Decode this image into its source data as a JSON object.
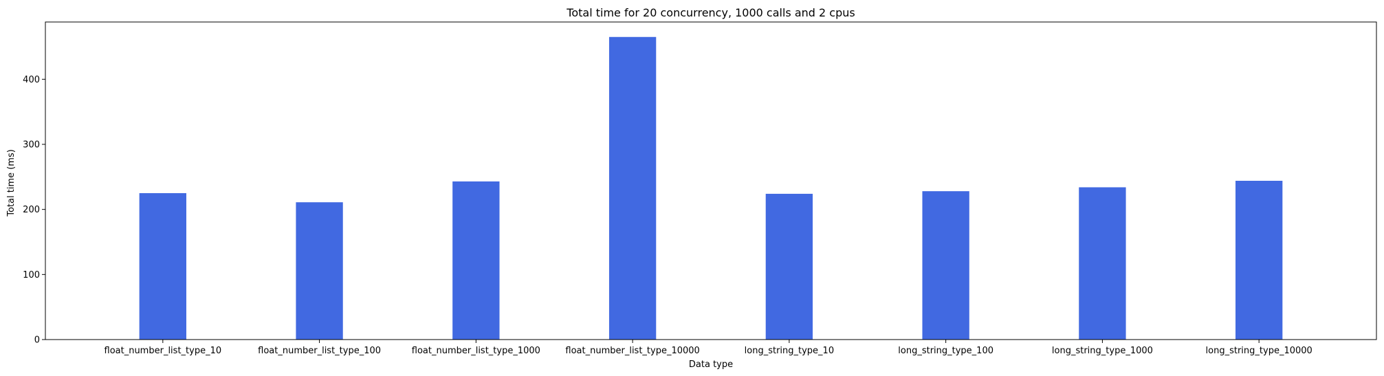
{
  "chart_data": {
    "type": "bar",
    "title": "Total time for 20 concurrency, 1000 calls and 2 cpus",
    "xlabel": "Data type",
    "ylabel": "Total time (ms)",
    "categories": [
      "float_number_list_type_10",
      "float_number_list_type_100",
      "float_number_list_type_1000",
      "float_number_list_type_10000",
      "long_string_type_10",
      "long_string_type_100",
      "long_string_type_1000",
      "long_string_type_10000"
    ],
    "values": [
      225,
      211,
      243,
      465,
      224,
      228,
      234,
      244
    ],
    "yticks": [
      0,
      100,
      200,
      300,
      400
    ],
    "ylim": [
      0,
      488
    ],
    "bar_color": "#4169e1",
    "grid": false,
    "legend": "none"
  }
}
